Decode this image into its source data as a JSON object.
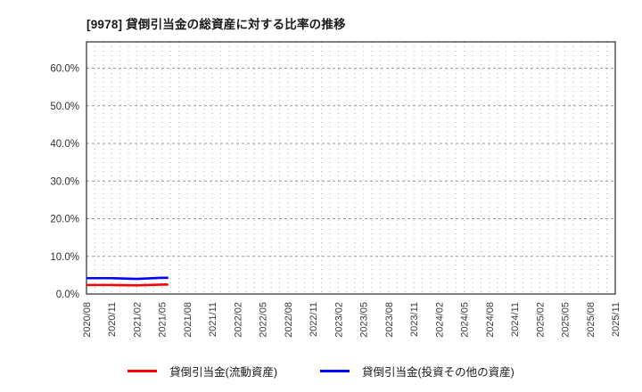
{
  "title": "[9978] 貸倒引当金の総資産に対する比率の推移",
  "chart_data": {
    "type": "line",
    "title": "[9978] 貸倒引当金の総資産に対する比率の推移",
    "x_tick_labels": [
      "2020/08",
      "2020/11",
      "2021/02",
      "2021/05",
      "2021/08",
      "2021/11",
      "2022/02",
      "2022/05",
      "2022/08",
      "2022/11",
      "2023/02",
      "2023/05",
      "2023/08",
      "2023/11",
      "2024/02",
      "2024/05",
      "2024/08",
      "2024/11",
      "2025/02",
      "2025/05",
      "2025/08",
      "2025/11"
    ],
    "y_tick_labels": [
      "0.0%",
      "10.0%",
      "20.0%",
      "30.0%",
      "40.0%",
      "50.0%",
      "60.0%"
    ],
    "ylim": [
      0,
      67
    ],
    "y_unit": "%",
    "grid": "dotted monthly vertical lines, dashed horizontal lines every 10%",
    "legend_position": "bottom-center",
    "series": [
      {
        "name": "貸倒引当金(流動資産)",
        "color": "#ff0000",
        "x": [
          "2020/08",
          "2020/11",
          "2021/02",
          "2021/05"
        ],
        "values": [
          2.4,
          2.4,
          2.3,
          2.5
        ]
      },
      {
        "name": "貸倒引当金(投資その他の資産)",
        "color": "#0000ff",
        "x": [
          "2020/08",
          "2020/11",
          "2021/02",
          "2021/05"
        ],
        "values": [
          4.2,
          4.2,
          4.0,
          4.3
        ]
      }
    ]
  },
  "legend": {
    "items": [
      {
        "label": "貸倒引当金(流動資産)",
        "color": "#ff0000"
      },
      {
        "label": "貸倒引当金(投資その他の資産)",
        "color": "#0000ff"
      }
    ]
  }
}
